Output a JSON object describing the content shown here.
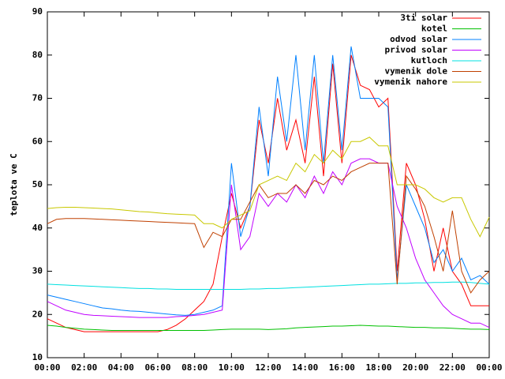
{
  "chart_data": {
    "type": "line",
    "y_label": "teplota ve C",
    "x": [
      0,
      0.5,
      1,
      1.5,
      2,
      2.5,
      3,
      3.5,
      4,
      4.5,
      5,
      5.5,
      6,
      6.5,
      7,
      7.5,
      8,
      8.5,
      9,
      9.5,
      10,
      10.5,
      11,
      11.5,
      12,
      12.5,
      13,
      13.5,
      14,
      14.5,
      15,
      15.5,
      16,
      16.5,
      17,
      17.5,
      18,
      18.5,
      19,
      19.5,
      20,
      20.5,
      21,
      21.5,
      22,
      22.5,
      23,
      23.5,
      24
    ],
    "xlim": [
      0,
      24
    ],
    "xticks": [
      {
        "value": 0,
        "label": "00:00"
      },
      {
        "value": 2,
        "label": "02:00"
      },
      {
        "value": 4,
        "label": "04:00"
      },
      {
        "value": 6,
        "label": "06:00"
      },
      {
        "value": 8,
        "label": "08:00"
      },
      {
        "value": 10,
        "label": "10:00"
      },
      {
        "value": 12,
        "label": "12:00"
      },
      {
        "value": 14,
        "label": "14:00"
      },
      {
        "value": 16,
        "label": "16:00"
      },
      {
        "value": 18,
        "label": "18:00"
      },
      {
        "value": 20,
        "label": "20:00"
      },
      {
        "value": 22,
        "label": "22:00"
      },
      {
        "value": 24,
        "label": "00:00"
      }
    ],
    "ylim": [
      10,
      90
    ],
    "yticks": [
      10,
      20,
      30,
      40,
      50,
      60,
      70,
      80,
      90
    ],
    "grid": false,
    "legend": "top-right",
    "series": [
      {
        "name": "3ti solar",
        "color": "#ff0000",
        "values": [
          19,
          18,
          17,
          16.5,
          16,
          16,
          16,
          16,
          16,
          16,
          16,
          16,
          16,
          16.5,
          17.5,
          19,
          21,
          23,
          27,
          38,
          48,
          40,
          45,
          65,
          55,
          70,
          58,
          65,
          55,
          75,
          52,
          78,
          55,
          80,
          73,
          72,
          68,
          70,
          30,
          55,
          50,
          42,
          30,
          40,
          30,
          27,
          22,
          22,
          22
        ]
      },
      {
        "name": "kotel",
        "color": "#00c000",
        "values": [
          17.5,
          17.3,
          17,
          16.8,
          16.6,
          16.5,
          16.4,
          16.3,
          16.3,
          16.3,
          16.3,
          16.3,
          16.3,
          16.3,
          16.3,
          16.3,
          16.3,
          16.3,
          16.4,
          16.5,
          16.6,
          16.6,
          16.6,
          16.6,
          16.5,
          16.6,
          16.7,
          16.9,
          17,
          17.1,
          17.2,
          17.3,
          17.3,
          17.4,
          17.5,
          17.4,
          17.3,
          17.3,
          17.2,
          17.1,
          17,
          17,
          16.9,
          16.9,
          16.8,
          16.7,
          16.6,
          16.6,
          16.5
        ]
      },
      {
        "name": "odvod solar",
        "color": "#0080ff",
        "values": [
          24.5,
          24,
          23.5,
          23,
          22.5,
          22,
          21.5,
          21.3,
          21,
          20.8,
          20.7,
          20.5,
          20.3,
          20.1,
          19.9,
          19.8,
          20,
          20.5,
          21,
          22,
          55,
          38,
          45,
          68,
          52,
          75,
          60,
          80,
          58,
          80,
          55,
          80,
          58,
          82,
          70,
          70,
          70,
          68,
          28,
          50,
          45,
          40,
          32,
          35,
          30,
          33,
          28,
          29,
          27
        ]
      },
      {
        "name": "privod solar",
        "color": "#c000ff",
        "values": [
          23,
          22,
          21,
          20.5,
          20,
          19.8,
          19.7,
          19.6,
          19.5,
          19.4,
          19.3,
          19.3,
          19.3,
          19.3,
          19.5,
          19.6,
          19.8,
          20,
          20.5,
          21,
          50,
          35,
          38,
          48,
          45,
          48,
          46,
          50,
          47,
          52,
          48,
          53,
          50,
          55,
          56,
          56,
          55,
          55,
          45,
          40,
          33,
          28,
          25,
          22,
          20,
          19,
          18,
          18,
          17
        ]
      },
      {
        "name": "kutloch",
        "color": "#00e0e0",
        "values": [
          27,
          26.9,
          26.8,
          26.7,
          26.6,
          26.5,
          26.4,
          26.3,
          26.2,
          26.1,
          26,
          26,
          25.9,
          25.9,
          25.8,
          25.8,
          25.8,
          25.8,
          25.8,
          25.8,
          25.8,
          25.8,
          25.9,
          25.9,
          26,
          26,
          26.1,
          26.2,
          26.3,
          26.4,
          26.5,
          26.6,
          26.7,
          26.8,
          26.9,
          27,
          27,
          27.1,
          27.2,
          27.2,
          27.3,
          27.3,
          27.4,
          27.4,
          27.5,
          27.5,
          27.4,
          27.2,
          27
        ]
      },
      {
        "name": "vymenik dole",
        "color": "#c04000",
        "values": [
          41,
          42,
          42.2,
          42.2,
          42.2,
          42.1,
          42,
          41.9,
          41.8,
          41.7,
          41.6,
          41.5,
          41.4,
          41.3,
          41.2,
          41.1,
          41,
          35.5,
          39,
          38,
          42,
          42,
          46,
          50,
          47,
          48,
          48,
          50,
          48,
          51,
          50,
          52,
          51,
          53,
          54,
          55,
          55,
          55,
          27,
          52,
          49,
          45,
          38,
          30,
          44,
          30,
          25,
          28,
          30
        ]
      },
      {
        "name": "vymenik nahore",
        "color": "#c8c800",
        "values": [
          44.5,
          44.7,
          44.8,
          44.8,
          44.7,
          44.6,
          44.5,
          44.4,
          44.2,
          44,
          43.8,
          43.7,
          43.5,
          43.3,
          43.2,
          43.1,
          43,
          41,
          41,
          40,
          42,
          43,
          44,
          50,
          51,
          52,
          51,
          55,
          53,
          57,
          55,
          58,
          56,
          60,
          60,
          61,
          59,
          59,
          50,
          50,
          50,
          49,
          47,
          46,
          47,
          47,
          42,
          38,
          42.5
        ]
      }
    ]
  }
}
